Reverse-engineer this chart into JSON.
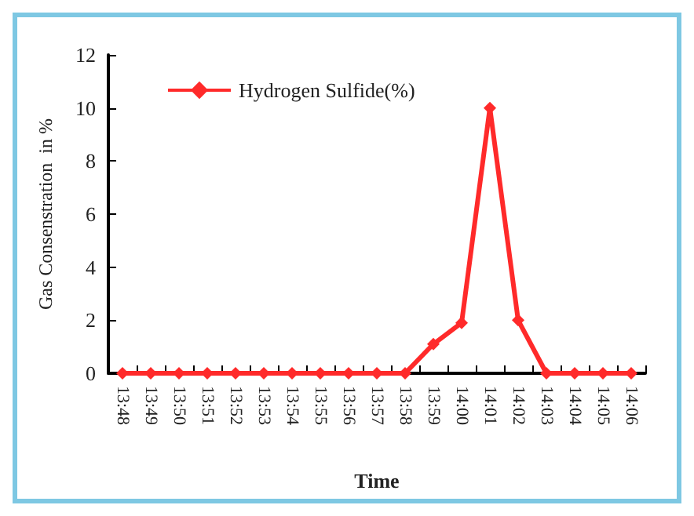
{
  "chart_data": {
    "type": "line",
    "xlabel": "Time",
    "ylabel": "Gas Consenstration  in %",
    "categories": [
      "13:48",
      "13:49",
      "13:50",
      "13:51",
      "13:52",
      "13:53",
      "13:54",
      "13:55",
      "13:56",
      "13:57",
      "13:58",
      "13:59",
      "14:00",
      "14:01",
      "14:02",
      "14:03",
      "14:04",
      "14:05",
      "14:06"
    ],
    "series": [
      {
        "name": "Hydrogen Sulfide(%)",
        "color": "#ff2a2a",
        "values": [
          0,
          0,
          0,
          0,
          0,
          0,
          0,
          0,
          0,
          0,
          0,
          1.1,
          1.9,
          10,
          2,
          0,
          0,
          0,
          0
        ]
      }
    ],
    "ylim": [
      0,
      12
    ],
    "yticks": [
      0,
      2,
      4,
      6,
      8,
      10,
      12
    ],
    "grid": false,
    "legend": "top left",
    "marker": "diamond",
    "line_style": "solid"
  }
}
